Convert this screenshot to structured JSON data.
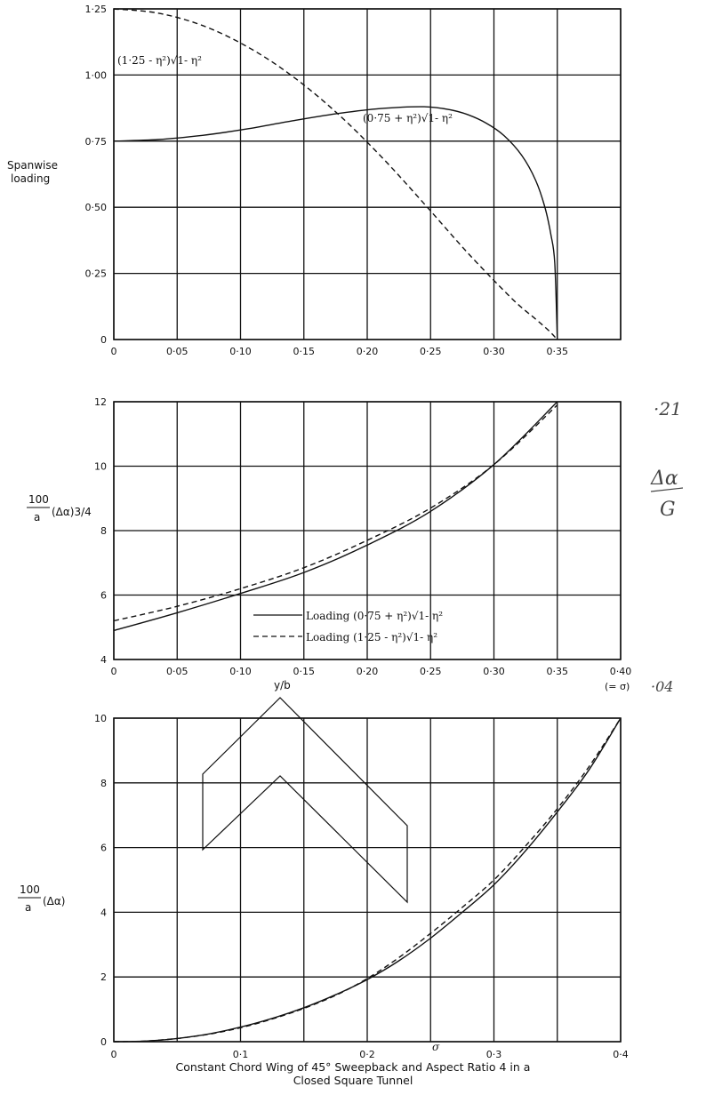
{
  "caption": {
    "line1": "Constant Chord Wing of 45° Sweepback and Aspect Ratio 4 in a",
    "line2": "Closed Square Tunnel"
  },
  "handwriting": {
    "top": "·21",
    "mid": "Δα",
    "mid2": "G",
    "bottom": "·04"
  },
  "chart_data": [
    {
      "type": "line",
      "title": "",
      "xlabel": "",
      "ylabel_line1": "Spanwise",
      "ylabel_line2": "loading",
      "xlim": [
        0,
        0.4
      ],
      "ylim": [
        0,
        1.25
      ],
      "x_ticks": [
        "0",
        "0·05",
        "0·10",
        "0·15",
        "0·20",
        "0·25",
        "0·30",
        "0·35"
      ],
      "y_ticks": [
        "0",
        "0·25",
        "0·50",
        "0·75",
        "1·00",
        "1·25"
      ],
      "annotations": [
        "(0·75 + η²)√1- η²",
        "(1·25 - η²)√1- η²"
      ],
      "series": [
        {
          "name": "(0·75 + η²)√1- η²",
          "style": "solid",
          "x": [
            0,
            0.035,
            0.07,
            0.105,
            0.14,
            0.175,
            0.21,
            0.245,
            0.266,
            0.28,
            0.294,
            0.308,
            0.322,
            0.333,
            0.34,
            0.345,
            0.348,
            0.35
          ],
          "y": [
            0.75,
            0.756,
            0.772,
            0.796,
            0.826,
            0.853,
            0.873,
            0.88,
            0.868,
            0.849,
            0.818,
            0.771,
            0.696,
            0.601,
            0.504,
            0.396,
            0.29,
            0.0
          ]
        },
        {
          "name": "(1·25 - η²)√1- η²",
          "style": "dashed",
          "x": [
            0,
            0.035,
            0.07,
            0.105,
            0.14,
            0.175,
            0.21,
            0.245,
            0.28,
            0.315,
            0.333,
            0.343,
            0.35
          ],
          "y": [
            1.25,
            1.234,
            1.187,
            1.108,
            0.999,
            0.861,
            0.697,
            0.513,
            0.324,
            0.151,
            0.077,
            0.035,
            0.0
          ]
        }
      ]
    },
    {
      "type": "line",
      "title": "",
      "xlabel": "y/b",
      "xlabel_note": "(= σ)",
      "ylabel": "100/a (Δα)3/4",
      "xlim": [
        0,
        0.4
      ],
      "ylim": [
        4,
        12
      ],
      "x_ticks": [
        "0",
        "0·05",
        "0·10",
        "0·15",
        "0·20",
        "0·25",
        "0·30",
        "0·35",
        "0·40"
      ],
      "y_ticks": [
        "4",
        "6",
        "8",
        "10",
        "12"
      ],
      "legend_position": "bottom-center",
      "series": [
        {
          "name": "Loading (0·75 + η²)√1- η²",
          "style": "solid",
          "x": [
            0,
            0.05,
            0.1,
            0.15,
            0.2,
            0.25,
            0.3,
            0.35
          ],
          "y": [
            4.9,
            5.45,
            6.05,
            6.7,
            7.55,
            8.6,
            10.05,
            12.0
          ]
        },
        {
          "name": "Loading (1·25 - η²)√1- η²",
          "style": "dashed",
          "x": [
            0,
            0.05,
            0.1,
            0.15,
            0.2,
            0.25,
            0.3,
            0.35
          ],
          "y": [
            5.2,
            5.65,
            6.2,
            6.85,
            7.7,
            8.7,
            10.05,
            11.9
          ]
        }
      ]
    },
    {
      "type": "line",
      "title": "",
      "xlabel": "σ",
      "ylabel": "100/a (Δα)",
      "xlim": [
        0,
        0.4
      ],
      "ylim": [
        0,
        10
      ],
      "x_ticks": [
        "0",
        "0·1",
        "0·2",
        "0·3",
        "0·4"
      ],
      "y_ticks": [
        "0",
        "2",
        "4",
        "6",
        "8",
        "10"
      ],
      "series": [
        {
          "name": "",
          "style": "solid",
          "x": [
            0,
            0.025,
            0.05,
            0.075,
            0.1,
            0.125,
            0.15,
            0.175,
            0.2,
            0.225,
            0.25,
            0.275,
            0.3,
            0.325,
            0.35,
            0.375,
            0.4
          ],
          "y": [
            0.0,
            0.02,
            0.1,
            0.24,
            0.45,
            0.72,
            1.05,
            1.45,
            1.92,
            2.5,
            3.2,
            4.0,
            4.85,
            5.9,
            7.1,
            8.4,
            10.0
          ]
        },
        {
          "name": "",
          "style": "dashed",
          "x": [
            0,
            0.025,
            0.05,
            0.075,
            0.1,
            0.125,
            0.15,
            0.175,
            0.2,
            0.225,
            0.25,
            0.275,
            0.3,
            0.325,
            0.35,
            0.375,
            0.4
          ],
          "y": [
            0.0,
            0.02,
            0.1,
            0.23,
            0.43,
            0.7,
            1.03,
            1.43,
            1.95,
            2.6,
            3.35,
            4.15,
            5.0,
            6.05,
            7.2,
            8.5,
            10.0
          ]
        }
      ],
      "inset": "swept-wing-planform"
    }
  ]
}
